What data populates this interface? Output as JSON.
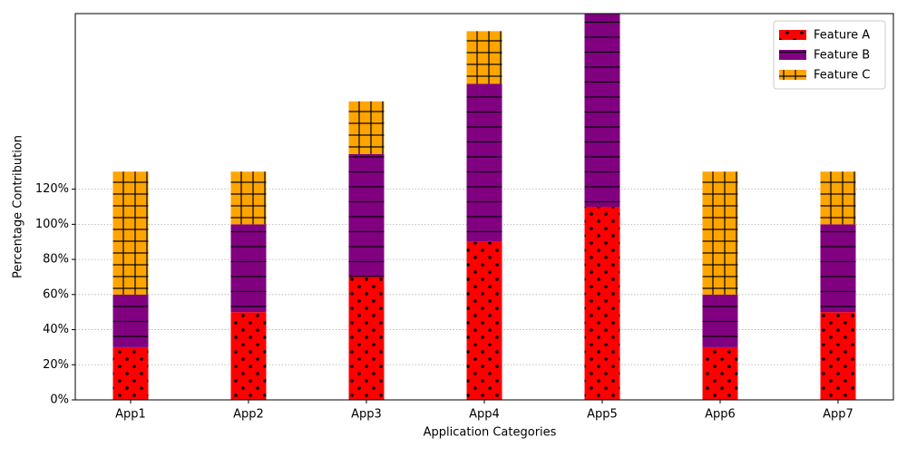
{
  "chart_data": {
    "type": "stacked_bar",
    "categories": [
      "App1",
      "App2",
      "App3",
      "App4",
      "App5",
      "App6",
      "App7"
    ],
    "series": [
      {
        "name": "Feature A",
        "color": "#ff0000",
        "hatch": "dots",
        "values": [
          30,
          50,
          70,
          90,
          110,
          30,
          50
        ]
      },
      {
        "name": "Feature B",
        "color": "#800080",
        "hatch": "lines",
        "values": [
          30,
          50,
          70,
          90,
          110,
          30,
          50
        ]
      },
      {
        "name": "Feature C",
        "color": "#ffa500",
        "hatch": "grid",
        "values": [
          70,
          30,
          30,
          30,
          0,
          70,
          30
        ]
      }
    ],
    "xlabel": "Application Categories",
    "ylabel": "Percentage Contribution",
    "ylim": [
      0,
      220
    ],
    "yticks": [
      {
        "value": 0,
        "label": "0%"
      },
      {
        "value": 20,
        "label": "20%"
      },
      {
        "value": 40,
        "label": "40%"
      },
      {
        "value": 60,
        "label": "60%"
      },
      {
        "value": 80,
        "label": "80%"
      },
      {
        "value": 100,
        "label": "100%"
      },
      {
        "value": 120,
        "label": "120%"
      }
    ],
    "grid": true,
    "legend": "upper right"
  }
}
